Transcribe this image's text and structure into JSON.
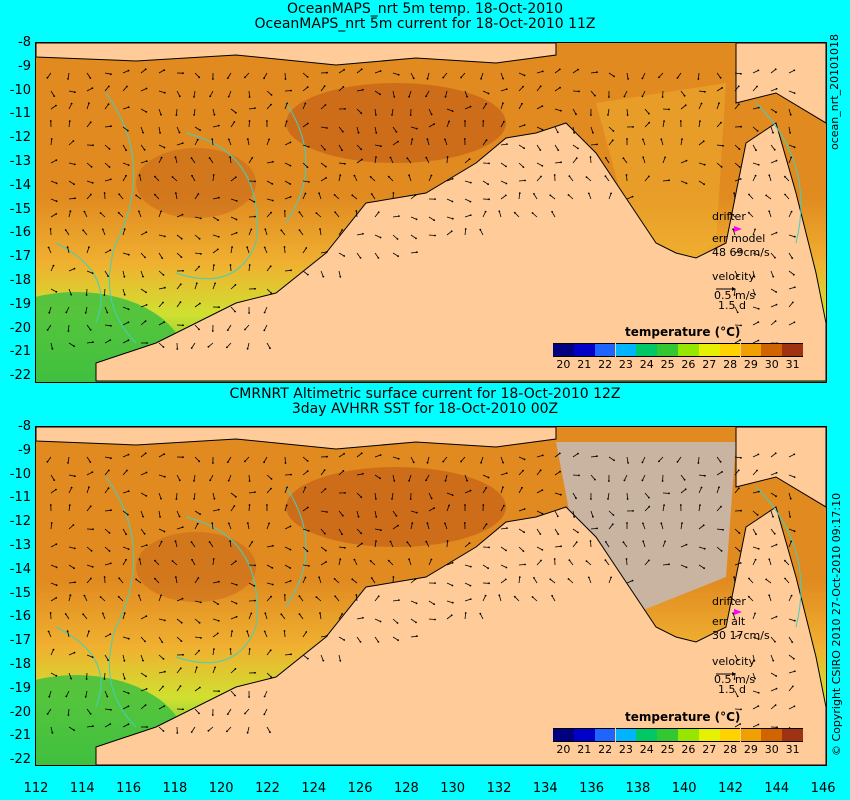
{
  "top": {
    "title_line1": "OceanMAPS_nrt 5m temp. 18-Oct-2010",
    "title_line2": "OceanMAPS_nrt 5m current for 18-Oct-2010 11Z",
    "side_label": "ocean_nrt_20101018",
    "legend": {
      "drifter": "drifter",
      "err_label": "err model",
      "err_value": "48 69cm/s",
      "velocity": "velocity",
      "speed": "0.5 m/s",
      "days": "1.5 d"
    },
    "colorbar_title": "temperature (°C)"
  },
  "bottom": {
    "title_line1": "CMRNRT Altimetric surface current for 18-Oct-2010 12Z",
    "title_line2": "3day AVHRR SST for 18-Oct-2010 00Z",
    "side_label": "© Copyright CSIRO 2010   27-Oct-2010 09:17:10",
    "legend": {
      "drifter": "drifter",
      "err_label": "err alt",
      "err_value": "30 17cm/s",
      "velocity": "velocity",
      "speed": "0.5 m/s",
      "days": "1.5 d"
    },
    "colorbar_title": "temperature (°C)"
  },
  "colorbar": {
    "ticks": [
      "20",
      "21",
      "22",
      "23",
      "24",
      "25",
      "26",
      "27",
      "28",
      "29",
      "30",
      "31"
    ],
    "colors": [
      "#000080",
      "#0000c8",
      "#1e64ff",
      "#00b4ff",
      "#00c864",
      "#32c832",
      "#96e600",
      "#e6f000",
      "#ffd200",
      "#f0a000",
      "#d26400",
      "#a03214"
    ]
  },
  "axes": {
    "y_ticks": [
      "-8",
      "-9",
      "-10",
      "-11",
      "-12",
      "-13",
      "-14",
      "-15",
      "-16",
      "-17",
      "-18",
      "-19",
      "-20",
      "-21",
      "-22"
    ],
    "x_ticks": [
      "112",
      "114",
      "116",
      "118",
      "120",
      "122",
      "124",
      "126",
      "128",
      "130",
      "132",
      "134",
      "136",
      "138",
      "140",
      "142",
      "144",
      "146"
    ]
  },
  "colors": {
    "background": "#00ffff",
    "land": "#ffcc99",
    "ocean_warm": "#e08a20",
    "ocean_hot": "#c05a18",
    "ocean_mid": "#f0b030",
    "ocean_cool": "#d0e030",
    "ocean_cold": "#40c040",
    "no_data": "#c8b4a0",
    "contour": "#40d0c0",
    "drifter": "#ff00ff"
  }
}
